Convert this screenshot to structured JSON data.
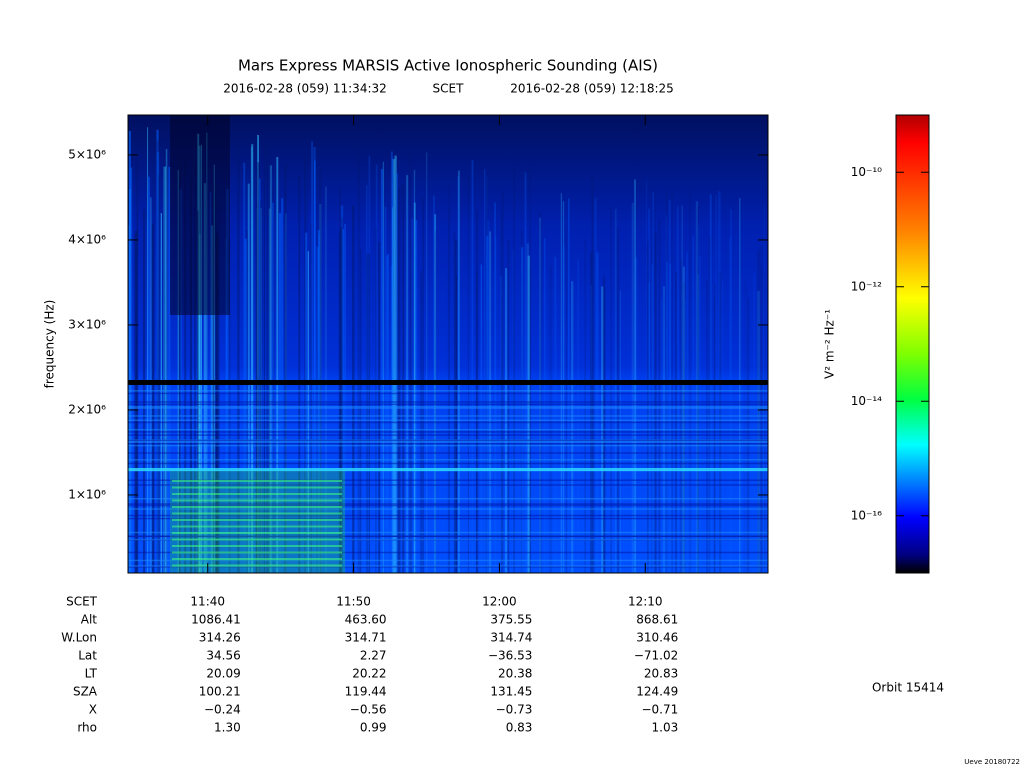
{
  "chart_data": {
    "type": "spectrogram",
    "title": "Mars Express MARSIS Active Ionospheric Sounding (AIS)",
    "start_time": "2016-02-28 (059) 11:34:32",
    "time_system": "SCET",
    "end_time": "2016-02-28 (059) 12:18:25",
    "ylabel": "frequency (Hz)",
    "xlim": [
      41672,
      44305
    ],
    "xticks": [
      {
        "value": 42000,
        "label": "11:40"
      },
      {
        "value": 42600,
        "label": "11:50"
      },
      {
        "value": 43200,
        "label": "12:00"
      },
      {
        "value": 43800,
        "label": "12:10"
      }
    ],
    "ylim": [
      82000,
      5470000
    ],
    "yticks": [
      {
        "value": 1000000,
        "label": "1×10⁶"
      },
      {
        "value": 2000000,
        "label": "2×10⁶"
      },
      {
        "value": 3000000,
        "label": "3×10⁶"
      },
      {
        "value": 4000000,
        "label": "4×10⁶"
      },
      {
        "value": 5000000,
        "label": "5×10⁶"
      }
    ],
    "colorbar": {
      "label": "V² m⁻² Hz⁻¹",
      "log_scale": true,
      "lim": [
        1e-17,
        1e-09
      ],
      "ticks": [
        {
          "value": 1e-10,
          "label": "10⁻¹⁰"
        },
        {
          "value": 1e-12,
          "label": "10⁻¹²"
        },
        {
          "value": 1e-14,
          "label": "10⁻¹⁴"
        },
        {
          "value": 1e-16,
          "label": "10⁻¹⁶"
        }
      ]
    },
    "ephemeris": {
      "row_labels": [
        "SCET",
        "Alt",
        "W.Lon",
        "Lat",
        "LT",
        "SZA",
        "X",
        "rho"
      ],
      "rows": [
        [
          "1086.41",
          "463.60",
          "375.55",
          "868.61"
        ],
        [
          "314.26",
          "314.71",
          "314.74",
          "310.46"
        ],
        [
          "34.56",
          "2.27",
          "−36.53",
          "−71.02"
        ],
        [
          "20.09",
          "20.22",
          "20.38",
          "20.83"
        ],
        [
          "100.21",
          "119.44",
          "131.45",
          "124.49"
        ],
        [
          "−0.24",
          "−0.56",
          "−0.73",
          "−0.71"
        ],
        [
          "1.30",
          "0.99",
          "0.83",
          "1.03"
        ]
      ]
    },
    "orbit": "Orbit 15414",
    "footer": "Ueve 20180722"
  }
}
